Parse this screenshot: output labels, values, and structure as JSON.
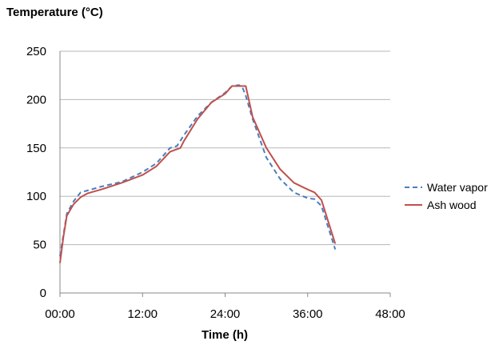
{
  "chart_data": {
    "type": "line",
    "ylabel": "Temperature (°C)",
    "xlabel": "Time (h)",
    "x_unit": "hours",
    "xlim": [
      "00:00",
      "48:00"
    ],
    "ylim": [
      0,
      250
    ],
    "x_ticks": [
      "00:00",
      "12:00",
      "24:00",
      "36:00",
      "48:00"
    ],
    "y_ticks": [
      "0",
      "50",
      "100",
      "150",
      "200",
      "250"
    ],
    "grid": "horizontal",
    "legend_position": "right",
    "series": [
      {
        "name": "Water vapor",
        "color": "#4a7ebb",
        "style": "dashed",
        "x": [
          "00:00",
          "00:30",
          "01:00",
          "02:00",
          "03:00",
          "04:00",
          "06:00",
          "09:00",
          "12:00",
          "14:00",
          "16:00",
          "17:00",
          "18:00",
          "20:00",
          "22:00",
          "24:00",
          "25:00",
          "26:00",
          "26:30",
          "27:00",
          "28:00",
          "30:00",
          "32:00",
          "34:00",
          "36:00",
          "37:00",
          "38:00",
          "40:00"
        ],
        "values": [
          38,
          60,
          82,
          95,
          104,
          106,
          110,
          115,
          125,
          134,
          150,
          152,
          163,
          183,
          197,
          207,
          214,
          215,
          213,
          204,
          180,
          140,
          118,
          104,
          98,
          97,
          90,
          45
        ]
      },
      {
        "name": "Ash wood",
        "color": "#c0504d",
        "style": "solid",
        "x": [
          "00:00",
          "00:30",
          "01:00",
          "02:00",
          "03:00",
          "04:00",
          "06:00",
          "09:00",
          "12:00",
          "14:00",
          "16:00",
          "17:30",
          "18:00",
          "20:00",
          "22:00",
          "24:00",
          "25:00",
          "26:00",
          "27:00",
          "28:00",
          "30:00",
          "32:00",
          "34:00",
          "36:00",
          "37:00",
          "38:00",
          "40:00"
        ],
        "values": [
          31,
          58,
          80,
          92,
          99,
          103,
          107,
          114,
          122,
          131,
          146,
          150,
          157,
          180,
          197,
          206,
          214,
          214,
          214,
          182,
          150,
          128,
          114,
          107,
          104,
          96,
          51
        ]
      }
    ]
  }
}
